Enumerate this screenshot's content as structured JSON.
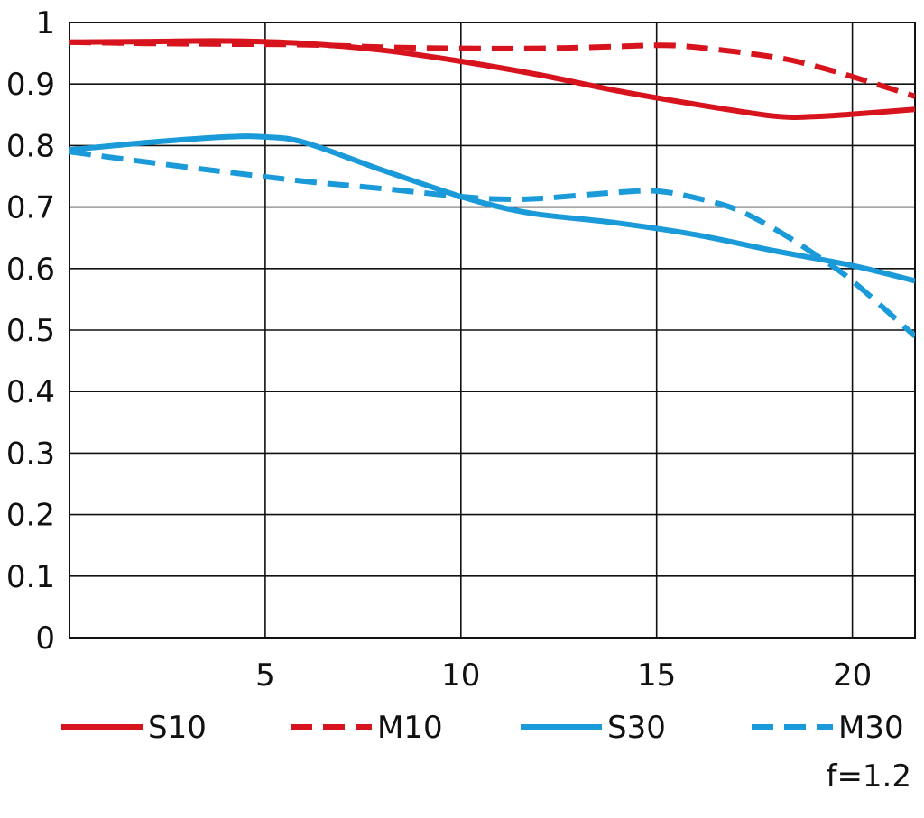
{
  "chart_data": {
    "type": "line",
    "title": "",
    "xlabel": "",
    "ylabel": "",
    "xlim": [
      0,
      21.6
    ],
    "ylim": [
      0,
      1
    ],
    "x_ticks": [
      5,
      10,
      15,
      20
    ],
    "x_tick_labels": [
      "5",
      "10",
      "15",
      "20"
    ],
    "y_ticks": [
      0,
      0.1,
      0.2,
      0.3,
      0.4,
      0.5,
      0.6,
      0.7,
      0.8,
      0.9,
      1
    ],
    "y_tick_labels": [
      "0",
      "0.1",
      "0.2",
      "0.3",
      "0.4",
      "0.5",
      "0.6",
      "0.7",
      "0.8",
      "0.9",
      "1"
    ],
    "grid": true,
    "legend_position": "bottom",
    "annotation": "f=1.2",
    "series": [
      {
        "name": "S10",
        "color": "#d7141e",
        "dash": "solid",
        "points": [
          [
            0,
            0.968
          ],
          [
            2,
            0.969
          ],
          [
            4,
            0.97
          ],
          [
            6,
            0.966
          ],
          [
            8,
            0.955
          ],
          [
            10,
            0.937
          ],
          [
            12,
            0.915
          ],
          [
            14,
            0.889
          ],
          [
            16,
            0.867
          ],
          [
            18,
            0.848
          ],
          [
            19,
            0.847
          ],
          [
            20,
            0.851
          ],
          [
            21.6,
            0.859
          ]
        ]
      },
      {
        "name": "M10",
        "color": "#d7141e",
        "dash": "dashed",
        "points": [
          [
            0,
            0.968
          ],
          [
            2,
            0.966
          ],
          [
            4,
            0.965
          ],
          [
            6,
            0.964
          ],
          [
            8,
            0.96
          ],
          [
            10,
            0.958
          ],
          [
            12,
            0.958
          ],
          [
            14,
            0.961
          ],
          [
            15,
            0.963
          ],
          [
            16,
            0.96
          ],
          [
            18,
            0.944
          ],
          [
            19,
            0.93
          ],
          [
            20,
            0.912
          ],
          [
            21.6,
            0.88
          ]
        ]
      },
      {
        "name": "S30",
        "color": "#1a9ad9",
        "dash": "solid",
        "points": [
          [
            0,
            0.793
          ],
          [
            2,
            0.805
          ],
          [
            4,
            0.814
          ],
          [
            5,
            0.814
          ],
          [
            6,
            0.805
          ],
          [
            8,
            0.76
          ],
          [
            10,
            0.717
          ],
          [
            11,
            0.7
          ],
          [
            12,
            0.688
          ],
          [
            14,
            0.674
          ],
          [
            16,
            0.655
          ],
          [
            18,
            0.629
          ],
          [
            20,
            0.605
          ],
          [
            21.6,
            0.58
          ]
        ]
      },
      {
        "name": "M30",
        "color": "#1a9ad9",
        "dash": "dashed",
        "points": [
          [
            0,
            0.79
          ],
          [
            2,
            0.773
          ],
          [
            4,
            0.757
          ],
          [
            6,
            0.742
          ],
          [
            8,
            0.73
          ],
          [
            10,
            0.717
          ],
          [
            11,
            0.713
          ],
          [
            12,
            0.714
          ],
          [
            14,
            0.724
          ],
          [
            15,
            0.726
          ],
          [
            16,
            0.715
          ],
          [
            17,
            0.697
          ],
          [
            18,
            0.665
          ],
          [
            19,
            0.625
          ],
          [
            20,
            0.58
          ],
          [
            21.6,
            0.49
          ]
        ]
      }
    ]
  }
}
